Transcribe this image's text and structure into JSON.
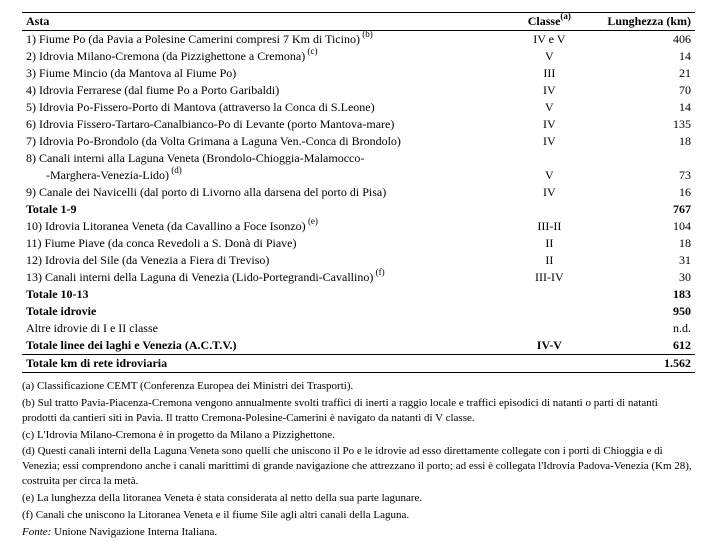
{
  "columns": {
    "asta": "Asta",
    "classe": "Classe",
    "classe_note": "(a)",
    "lunghezza": "Lunghezza (km)"
  },
  "rows": [
    {
      "asta": "1) Fiume Po (da Pavia a Polesine Camerini compresi 7 Km di Ticino)",
      "note": "(b)",
      "classe": "IV e V",
      "len": "406"
    },
    {
      "asta": "2) Idrovia Milano-Cremona (da Pizzighettone a Cremona)",
      "note": "(c)",
      "classe": "V",
      "len": "14"
    },
    {
      "asta": "3) Fiume Mincio (da Mantova al Fiume Po)",
      "note": "",
      "classe": "III",
      "len": "21"
    },
    {
      "asta": "4) Idrovia Ferrarese (dal fiume Po a Porto Garibaldi)",
      "note": "",
      "classe": "IV",
      "len": "70"
    },
    {
      "asta": "5) Idrovia Po-Fissero-Porto di Mantova (attraverso la Conca di S.Leone)",
      "note": "",
      "classe": "V",
      "len": "14"
    },
    {
      "asta": "6) Idrovia Fissero-Tartaro-Canalbianco-Po di Levante (porto Mantova-mare)",
      "note": "",
      "classe": "IV",
      "len": "135"
    },
    {
      "asta": "7) Idrovia Po-Brondolo (da Volta Grimana a Laguna Ven.-Conca di Brondolo)",
      "note": "",
      "classe": "IV",
      "len": "18"
    },
    {
      "asta": "8) Canali interni alla Laguna Veneta (Brondolo-Chioggia-Malamocco-",
      "note": "",
      "classe": "",
      "len": ""
    },
    {
      "asta_indent": true,
      "asta": "-Marghera-Venezia-Lido)",
      "note": "(d)",
      "classe": "V",
      "len": "73"
    },
    {
      "asta": "9) Canale dei Navicelli (dal porto di Livorno alla darsena del porto di Pisa)",
      "note": "",
      "classe": "IV",
      "len": "16"
    }
  ],
  "tot19": {
    "asta": "Totale 1-9",
    "classe": "",
    "len": "767"
  },
  "rows2": [
    {
      "asta": "10) Idrovia Litoranea Veneta (da Cavallino a Foce Isonzo)",
      "note": "(e)",
      "classe": "III-II",
      "len": "104"
    },
    {
      "asta": "11) Fiume Piave (da conca Revedoli a S. Donà di Piave)",
      "note": "",
      "classe": "II",
      "len": "18"
    },
    {
      "asta": "12) Idrovia del Sile (da Venezia a Fiera di Treviso)",
      "note": "",
      "classe": "II",
      "len": "31"
    },
    {
      "asta": "13) Canali interni della Laguna di Venezia (Lido-Portegrandi-Cavallino)",
      "note": "(f)",
      "classe": "III-IV",
      "len": "30"
    }
  ],
  "tot1013": {
    "asta": "Totale 10-13",
    "classe": "",
    "len": "183"
  },
  "totIdrovie": {
    "asta": "Totale idrovie",
    "classe": "",
    "len": "950"
  },
  "altre": {
    "asta": "Altre idrovie di I e II classe",
    "classe": "",
    "len": "n.d."
  },
  "totLaghi": {
    "asta": "Totale linee dei laghi e Venezia (A.C.T.V.)",
    "classe": "IV-V",
    "len": "612"
  },
  "grand": {
    "asta": "Totale km di rete idroviaria",
    "classe": "",
    "len": "1.562"
  },
  "footnotes": {
    "a": "(a) Classificazione CEMT (Conferenza Europea dei Ministri dei Trasporti).",
    "b": "(b) Sul tratto Pavia-Piacenza-Cremona vengono annualmente svolti traffici di inerti a raggio locale e traffici episodici di natanti o parti di natanti prodotti da cantieri siti in Pavia. Il tratto Cremona-Polesine-Camerini è navigato da natanti di V classe.",
    "c": "(c) L'Idrovia Milano-Cremona è in progetto da Milano a Pizzighettone.",
    "d": "(d) Questi canali interni della Laguna Veneta sono quelli che uniscono il Po e le idrovie ad esso direttamente collegate con i porti di Chioggia e di Venezia; essi comprendono anche i canali marittimi di grande navigazione che attrezzano il porto; ad essi è collegata l'Idrovia Padova-Venezia (Km 28), costruita per circa la metà.",
    "e": "(e) La lunghezza della litoranea Veneta è stata considerata al netto della sua parte lagunare.",
    "f": "(f) Canali che uniscono la Litoranea Veneta e il fiume Sile agli altri canali della Laguna.",
    "source_label": "Fonte:",
    "source": " Unione Navigazione Interna Italiana."
  }
}
